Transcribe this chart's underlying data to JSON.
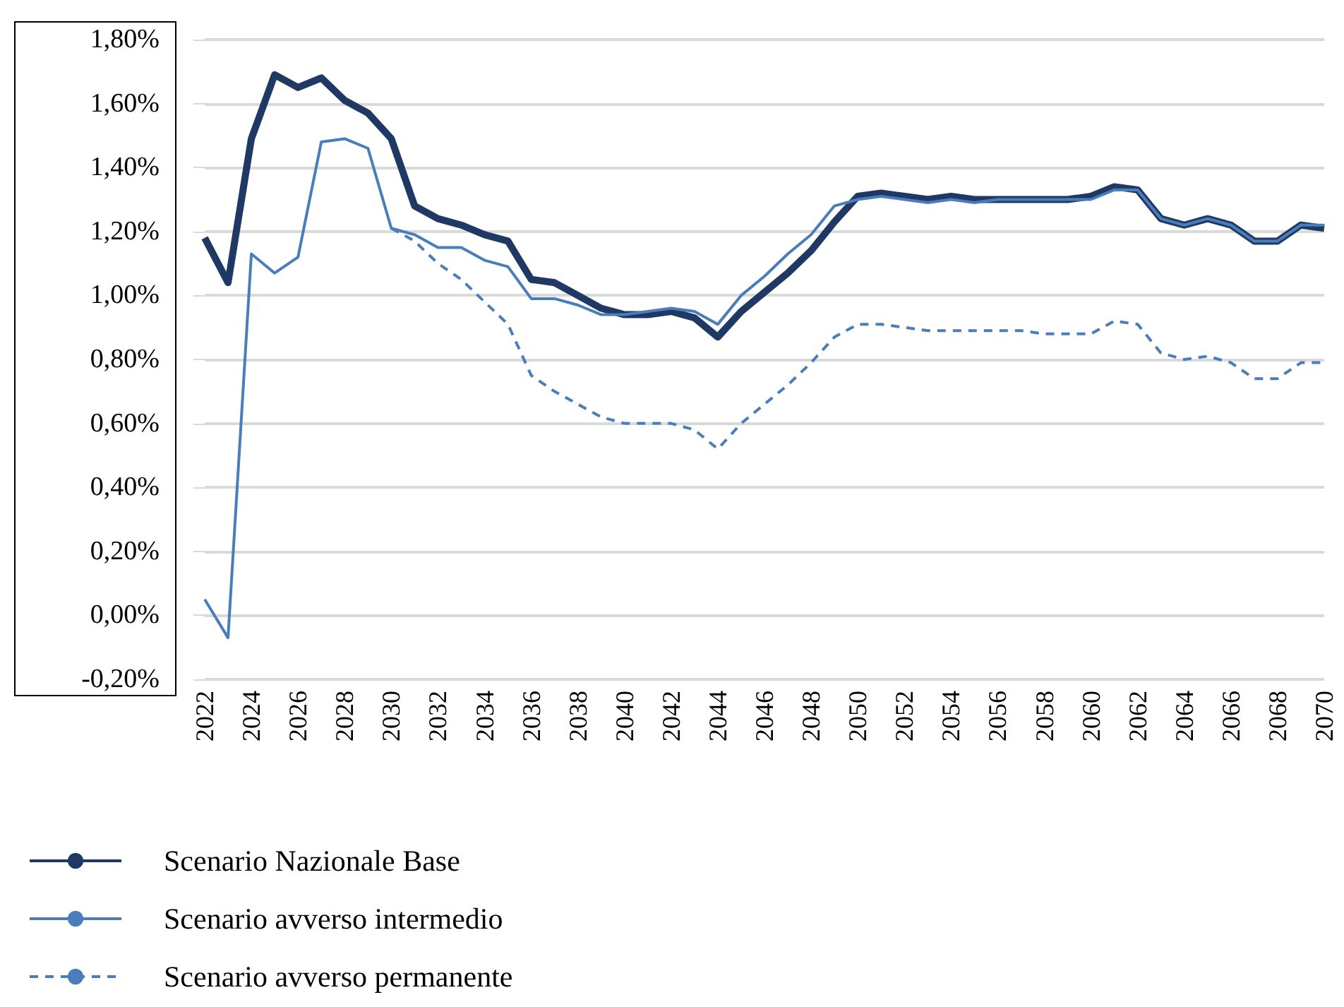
{
  "chart_data": {
    "type": "line",
    "categories": [
      "2022",
      null,
      "2024",
      null,
      "2026",
      null,
      "2028",
      null,
      "2030",
      null,
      "2032",
      null,
      "2034",
      null,
      "2036",
      null,
      "2038",
      null,
      "2040",
      null,
      "2042",
      null,
      "2044",
      null,
      "2046",
      null,
      "2048",
      null,
      "2050",
      null,
      "2052",
      null,
      "2054",
      null,
      "2056",
      null,
      "2058",
      null,
      "2060",
      null,
      "2062",
      null,
      "2064",
      null,
      "2066",
      null,
      "2068",
      null,
      "2070"
    ],
    "ylim": [
      -0.2,
      1.8
    ],
    "yticks": [
      {
        "value": -0.2,
        "label": "-0,20%"
      },
      {
        "value": 0,
        "label": "0,00%"
      },
      {
        "value": 0.2,
        "label": "0,20%"
      },
      {
        "value": 0.4,
        "label": "0,40%"
      },
      {
        "value": 0.6,
        "label": "0,60%"
      },
      {
        "value": 0.8,
        "label": "0,80%"
      },
      {
        "value": 1,
        "label": "1,00%"
      },
      {
        "value": 1.2,
        "label": "1,20%"
      },
      {
        "value": 1.4,
        "label": "1,40%"
      },
      {
        "value": 1.6,
        "label": "1,60%"
      },
      {
        "value": 1.8,
        "label": "1,80%"
      }
    ],
    "grid": "y",
    "legend": "bottom left",
    "marker": "none",
    "series": [
      {
        "name": "Scenario Nazionale Base",
        "color": "#1f3864",
        "line_style": "solid",
        "values": [
          1.18,
          1.04,
          1.49,
          1.69,
          1.65,
          1.68,
          1.61,
          1.57,
          1.49,
          1.28,
          1.24,
          1.22,
          1.19,
          1.17,
          1.05,
          1.04,
          1.0,
          0.96,
          0.94,
          0.94,
          0.95,
          0.93,
          0.87,
          0.95,
          1.01,
          1.07,
          1.14,
          1.23,
          1.31,
          1.32,
          1.31,
          1.3,
          1.31,
          1.3,
          1.3,
          1.3,
          1.3,
          1.3,
          1.31,
          1.34,
          1.33,
          1.24,
          1.22,
          1.24,
          1.22,
          1.17,
          1.17,
          1.22,
          1.21
        ]
      },
      {
        "name": "Scenario avverso intermedio",
        "color": "#4a7ebb",
        "line_style": "solid",
        "values": [
          0.05,
          -0.07,
          1.13,
          1.07,
          1.12,
          1.48,
          1.49,
          1.46,
          1.21,
          1.19,
          1.15,
          1.15,
          1.11,
          1.09,
          0.99,
          0.99,
          0.97,
          0.94,
          0.94,
          0.95,
          0.96,
          0.95,
          0.91,
          1.0,
          1.06,
          1.13,
          1.19,
          1.28,
          1.3,
          1.31,
          1.3,
          1.29,
          1.3,
          1.29,
          1.3,
          1.3,
          1.3,
          1.3,
          1.3,
          1.33,
          1.33,
          1.24,
          1.22,
          1.24,
          1.22,
          1.17,
          1.17,
          1.22,
          1.22
        ]
      },
      {
        "name": "Scenario avverso permanente",
        "color": "#4a7ebb",
        "line_style": "dashed",
        "values": [
          null,
          null,
          null,
          null,
          null,
          null,
          null,
          null,
          1.21,
          1.17,
          1.1,
          1.05,
          0.98,
          0.91,
          0.75,
          0.7,
          0.66,
          0.62,
          0.6,
          0.6,
          0.6,
          0.58,
          0.52,
          0.6,
          0.66,
          0.72,
          0.79,
          0.87,
          0.91,
          0.91,
          0.9,
          0.89,
          0.89,
          0.89,
          0.89,
          0.89,
          0.88,
          0.88,
          0.88,
          0.92,
          0.91,
          0.82,
          0.8,
          0.81,
          0.79,
          0.74,
          0.74,
          0.79,
          0.79
        ]
      }
    ]
  }
}
